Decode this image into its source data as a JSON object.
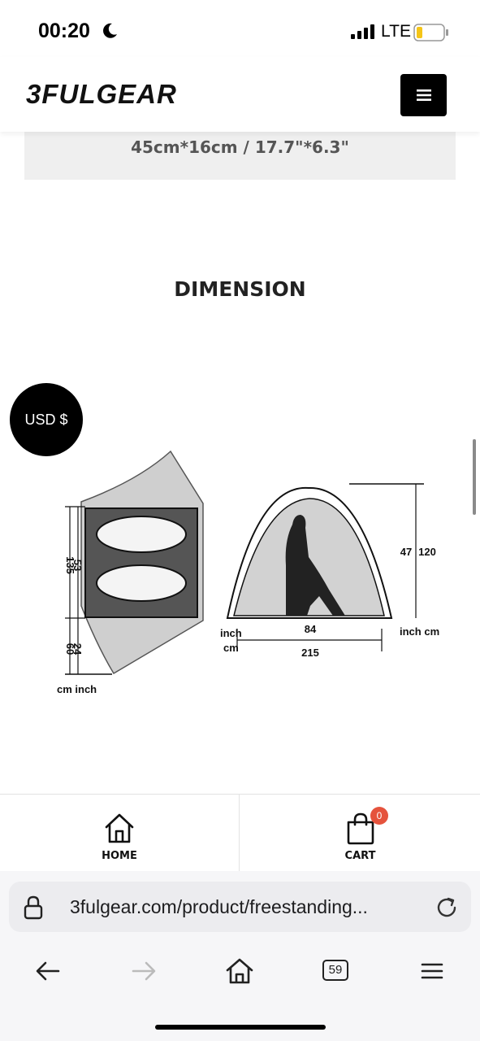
{
  "status_bar": {
    "time": "00:20",
    "network": "LTE",
    "icons": [
      "moon-icon",
      "signal-icon",
      "battery-icon"
    ]
  },
  "header": {
    "logo_text": "3FULGEAR",
    "menu_icon": "hamburger-menu-icon"
  },
  "product": {
    "size_text": "45cm*16cm / 17.7\"*6.3\"",
    "section_title": "DIMENSION"
  },
  "currency": {
    "label": "USD $"
  },
  "diagram": {
    "floor": {
      "length_cm": "135",
      "length_inch": "53",
      "vestibule_cm": "60",
      "vestibule_inch": "24",
      "units": "cm inch"
    },
    "side": {
      "height_inch": "47",
      "height_cm": "120",
      "height_units": "inch cm",
      "width_inch": "84",
      "width_cm": "215",
      "left_unit_top": "inch",
      "left_unit_bottom": "cm"
    }
  },
  "bottom_nav": {
    "home_label": "HOME",
    "cart_label": "CART",
    "cart_count": "0"
  },
  "browser": {
    "url": "3fulgear.com/product/freestanding...",
    "tab_count": "59"
  },
  "colors": {
    "badge": "#e5533d",
    "header_button": "#000000",
    "size_box_bg": "#efefef"
  }
}
